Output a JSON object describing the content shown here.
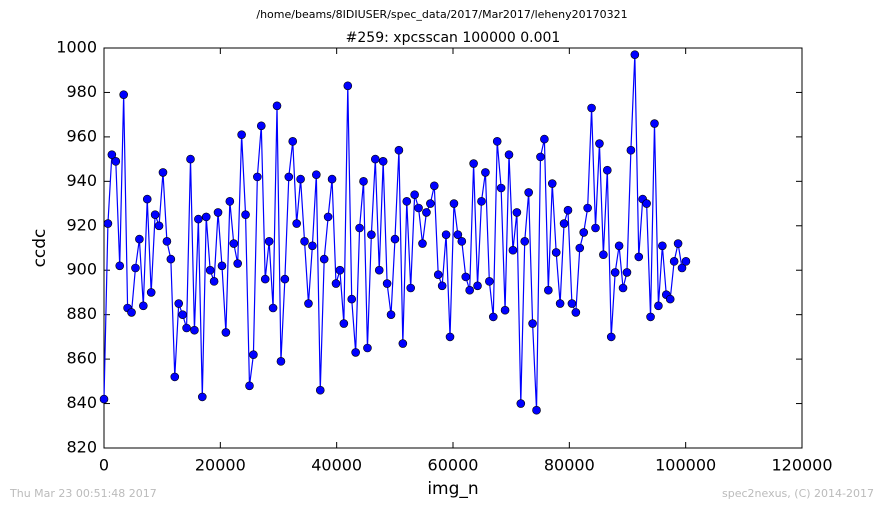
{
  "chart_data": {
    "type": "line",
    "suptitle": "/home/beams/8IDIUSER/spec_data/2017/Mar2017/leheny20170321",
    "title": "#259: xpcsscan 100000 0.001",
    "x_label": "img_n",
    "y_label": "ccdc",
    "footer_left": "Thu Mar 23 00:51:48 2017",
    "footer_right": "spec2nexus, (C) 2014-2017",
    "xlim": [
      0,
      120000
    ],
    "xticks": [
      0,
      20000,
      40000,
      60000,
      80000,
      100000,
      120000
    ],
    "ylim": [
      820,
      1000
    ],
    "yticks": [
      820,
      840,
      860,
      880,
      900,
      920,
      940,
      960,
      980,
      1000
    ],
    "grid": false,
    "x": [
      0,
      676,
      1352,
      2028,
      2704,
      3380,
      4056,
      4732,
      5408,
      6084,
      6760,
      7436,
      8112,
      8788,
      9464,
      10140,
      10816,
      11492,
      12168,
      12844,
      13520,
      14196,
      14872,
      15548,
      16224,
      16900,
      17576,
      18252,
      18928,
      19604,
      20280,
      20956,
      21632,
      22308,
      22984,
      23660,
      24336,
      25012,
      25688,
      26364,
      27040,
      27716,
      28392,
      29068,
      29744,
      30420,
      31096,
      31772,
      32448,
      33124,
      33800,
      34476,
      35152,
      35828,
      36504,
      37180,
      37856,
      38532,
      39208,
      39884,
      40560,
      41236,
      41912,
      42588,
      43264,
      43940,
      44616,
      45292,
      45968,
      46644,
      47320,
      47996,
      48672,
      49348,
      50024,
      50700,
      51376,
      52052,
      52728,
      53404,
      54080,
      54756,
      55432,
      56108,
      56784,
      57460,
      58136,
      58812,
      59488,
      60164,
      60840,
      61516,
      62192,
      62868,
      63544,
      64220,
      64896,
      65572,
      66248,
      66924,
      67600,
      68276,
      68952,
      69628,
      70304,
      70980,
      71656,
      72332,
      73008,
      73684,
      74360,
      75036,
      75712,
      76388,
      77064,
      77740,
      78416,
      79092,
      79768,
      80444,
      81120,
      81796,
      82472,
      83148,
      83824,
      84500,
      85176,
      85852,
      86528,
      87204,
      87880,
      88556,
      89232,
      89908,
      90584,
      91260,
      91936,
      92612,
      93288,
      93964,
      94640,
      95316,
      95992,
      96668,
      97344,
      98020,
      98696,
      99372,
      100048
    ],
    "series": [
      {
        "color": "#0000ff",
        "values": [
          842,
          921,
          952,
          949,
          902,
          979,
          883,
          881,
          901,
          914,
          884,
          932,
          890,
          925,
          920,
          944,
          913,
          905,
          852,
          885,
          880,
          874,
          950,
          873,
          923,
          843,
          924,
          900,
          895,
          926,
          902,
          872,
          931,
          912,
          903,
          961,
          925,
          848,
          862,
          942,
          965,
          896,
          913,
          883,
          974,
          859,
          896,
          942,
          958,
          921,
          941,
          913,
          885,
          911,
          943,
          846,
          905,
          924,
          941,
          894,
          900,
          876,
          983,
          887,
          863,
          919,
          940,
          865,
          916,
          950,
          900,
          949,
          894,
          880,
          914,
          954,
          867,
          931,
          892,
          934,
          928,
          912,
          926,
          930,
          938,
          898,
          893,
          916,
          870,
          930,
          916,
          913,
          897,
          891,
          948,
          893,
          931,
          944,
          895,
          879,
          958,
          937,
          882,
          952,
          909,
          926,
          840,
          913,
          935,
          876,
          837,
          951,
          959,
          891,
          939,
          908,
          885,
          921,
          927,
          885,
          881,
          910,
          917,
          928,
          973,
          919,
          957,
          907,
          945,
          870,
          899,
          911,
          892,
          899,
          954,
          997,
          906,
          932,
          930,
          879,
          966,
          884,
          911,
          889,
          887,
          904,
          912,
          901,
          904
        ]
      }
    ]
  }
}
